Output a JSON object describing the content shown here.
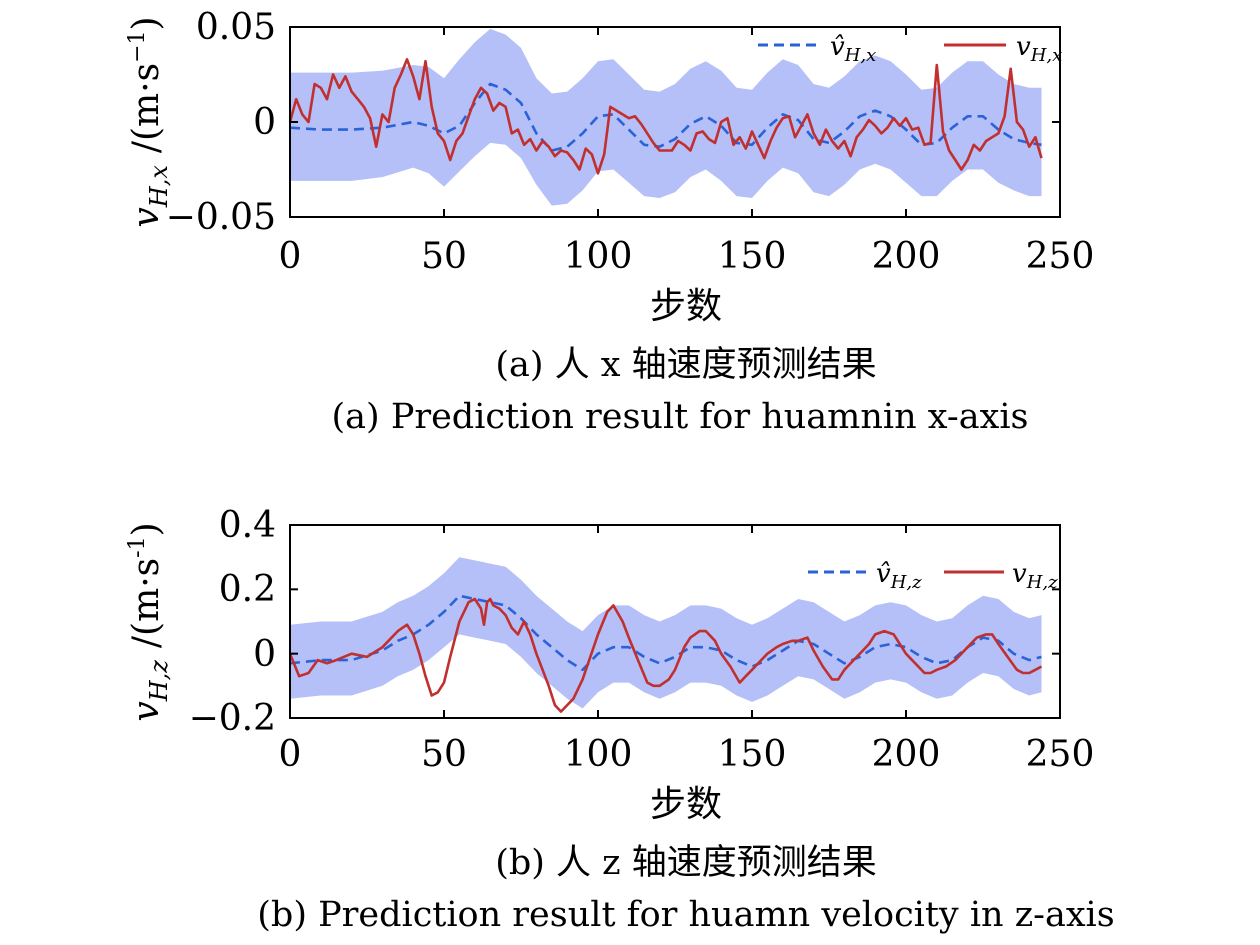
{
  "chart_data": [
    {
      "type": "line",
      "xlabel": "步数",
      "ylabel": "v",
      "ylabel_sub": "H,x",
      "ylabel_unit": "/(m·s",
      "ylabel_unit_exp": "−1",
      "ylabel_unit_close": ")",
      "caption_cn": "(a) 人 x 轴速度预测结果",
      "caption_en": "(a) Prediction result for huamnin x-axis",
      "xlim": [
        0,
        250
      ],
      "ylim": [
        -0.05,
        0.05
      ],
      "xticks": [
        0,
        50,
        100,
        150,
        200,
        250
      ],
      "xtick_labels": [
        "0",
        "50",
        "100",
        "150",
        "200",
        "250"
      ],
      "yticks": [
        -0.05,
        0,
        0.05
      ],
      "ytick_labels": [
        "−0.05",
        "0",
        "0.05"
      ],
      "legend_position": "top-right",
      "band_color": "#b4c0f7",
      "series": [
        {
          "name": "v̂",
          "name_sub": "H,x",
          "style": "dashed",
          "color": "#2a62d8",
          "x": [
            0,
            10,
            20,
            30,
            40,
            45,
            50,
            55,
            60,
            65,
            70,
            75,
            80,
            85,
            90,
            95,
            100,
            105,
            110,
            115,
            120,
            125,
            130,
            135,
            140,
            145,
            150,
            155,
            160,
            165,
            170,
            175,
            180,
            185,
            190,
            195,
            200,
            205,
            210,
            215,
            220,
            225,
            230,
            235,
            240,
            244
          ],
          "y": [
            -0.003,
            -0.004,
            -0.004,
            -0.003,
            0,
            -0.002,
            -0.006,
            -0.002,
            0.01,
            0.02,
            0.017,
            0.01,
            -0.006,
            -0.015,
            -0.013,
            -0.006,
            0.003,
            0.004,
            -0.004,
            -0.012,
            -0.013,
            -0.009,
            -0.001,
            0.003,
            -0.002,
            -0.011,
            -0.012,
            -0.003,
            0.004,
            0.001,
            -0.009,
            -0.011,
            -0.005,
            0.003,
            0.006,
            0.003,
            -0.004,
            -0.012,
            -0.011,
            -0.003,
            0.003,
            0.003,
            -0.004,
            -0.009,
            -0.011,
            -0.012
          ]
        },
        {
          "name": "v",
          "name_sub": "H,x",
          "style": "solid",
          "color": "#c22f2f",
          "x": [
            0,
            2,
            4,
            6,
            8,
            10,
            12,
            14,
            16,
            18,
            20,
            22,
            24,
            26,
            28,
            30,
            32,
            34,
            36,
            38,
            40,
            42,
            44,
            46,
            48,
            50,
            52,
            54,
            56,
            58,
            60,
            62,
            64,
            66,
            68,
            70,
            72,
            74,
            76,
            78,
            80,
            82,
            84,
            86,
            88,
            90,
            92,
            94,
            96,
            98,
            100,
            102,
            104,
            106,
            108,
            110,
            112,
            114,
            116,
            118,
            120,
            122,
            124,
            126,
            128,
            130,
            132,
            134,
            136,
            138,
            140,
            142,
            144,
            146,
            148,
            150,
            152,
            154,
            156,
            158,
            160,
            162,
            164,
            166,
            168,
            170,
            172,
            174,
            176,
            178,
            180,
            182,
            184,
            186,
            188,
            190,
            192,
            194,
            196,
            198,
            200,
            202,
            204,
            206,
            208,
            210,
            212,
            214,
            216,
            218,
            220,
            222,
            224,
            226,
            228,
            230,
            232,
            234,
            236,
            238,
            240,
            242,
            244
          ],
          "y": [
            0,
            0.012,
            0.004,
            0,
            0.02,
            0.018,
            0.012,
            0.025,
            0.018,
            0.024,
            0.016,
            0.012,
            0.008,
            0.002,
            -0.013,
            0.004,
            0,
            0.018,
            0.025,
            0.033,
            0.024,
            0.012,
            0.032,
            0.008,
            -0.006,
            -0.01,
            -0.02,
            -0.01,
            -0.006,
            0.003,
            0.012,
            0.018,
            0.015,
            0.006,
            0.01,
            0.008,
            -0.006,
            -0.004,
            -0.012,
            -0.009,
            -0.015,
            -0.01,
            -0.013,
            -0.018,
            -0.015,
            -0.016,
            -0.02,
            -0.025,
            -0.014,
            -0.017,
            -0.027,
            -0.017,
            0.008,
            0.006,
            0.004,
            0.002,
            0.003,
            -0.001,
            -0.006,
            -0.011,
            -0.015,
            -0.015,
            -0.015,
            -0.01,
            -0.012,
            -0.015,
            -0.006,
            -0.005,
            -0.009,
            -0.011,
            0,
            0.002,
            -0.012,
            -0.008,
            -0.014,
            -0.005,
            -0.012,
            -0.019,
            -0.01,
            -0.003,
            0.002,
            0.003,
            -0.008,
            -0.002,
            0.004,
            -0.006,
            -0.012,
            -0.004,
            -0.01,
            -0.014,
            -0.01,
            -0.018,
            -0.008,
            -0.004,
            0.001,
            -0.002,
            -0.006,
            -0.003,
            0.002,
            -0.002,
            0.002,
            -0.004,
            -0.003,
            -0.012,
            -0.011,
            0.03,
            -0.005,
            -0.015,
            -0.02,
            -0.025,
            -0.02,
            -0.012,
            -0.015,
            -0.01,
            -0.008,
            -0.006,
            0.003,
            0.028,
            0,
            -0.004,
            -0.013,
            -0.008,
            -0.019
          ]
        }
      ],
      "band": {
        "x": [
          0,
          10,
          20,
          30,
          40,
          45,
          50,
          55,
          60,
          65,
          70,
          75,
          80,
          85,
          90,
          95,
          100,
          105,
          110,
          115,
          120,
          125,
          130,
          135,
          140,
          145,
          150,
          155,
          160,
          165,
          170,
          175,
          180,
          185,
          190,
          195,
          200,
          205,
          210,
          215,
          220,
          225,
          230,
          235,
          240,
          244
        ],
        "lower": [
          -0.031,
          -0.031,
          -0.031,
          -0.029,
          -0.024,
          -0.027,
          -0.034,
          -0.026,
          -0.018,
          -0.011,
          -0.012,
          -0.019,
          -0.033,
          -0.044,
          -0.043,
          -0.036,
          -0.026,
          -0.025,
          -0.032,
          -0.039,
          -0.04,
          -0.037,
          -0.029,
          -0.025,
          -0.031,
          -0.039,
          -0.04,
          -0.031,
          -0.024,
          -0.027,
          -0.037,
          -0.039,
          -0.033,
          -0.025,
          -0.022,
          -0.025,
          -0.032,
          -0.039,
          -0.039,
          -0.031,
          -0.025,
          -0.025,
          -0.032,
          -0.036,
          -0.039,
          -0.039
        ],
        "upper": [
          0.026,
          0.026,
          0.026,
          0.027,
          0.03,
          0.029,
          0.023,
          0.033,
          0.042,
          0.049,
          0.046,
          0.039,
          0.023,
          0.015,
          0.016,
          0.023,
          0.032,
          0.033,
          0.025,
          0.017,
          0.016,
          0.02,
          0.028,
          0.032,
          0.027,
          0.018,
          0.017,
          0.026,
          0.033,
          0.03,
          0.02,
          0.018,
          0.024,
          0.032,
          0.035,
          0.032,
          0.025,
          0.017,
          0.018,
          0.026,
          0.032,
          0.032,
          0.025,
          0.02,
          0.018,
          0.018
        ]
      }
    },
    {
      "type": "line",
      "xlabel": "步数",
      "ylabel": "v",
      "ylabel_sub": "H,z",
      "ylabel_unit": "/(m·s",
      "ylabel_unit_exp": "-1",
      "ylabel_unit_close": ")",
      "caption_cn": "(b) 人 z 轴速度预测结果",
      "caption_en": "(b) Prediction result for huamn velocity in z-axis",
      "xlim": [
        0,
        250
      ],
      "ylim": [
        -0.2,
        0.4
      ],
      "xticks": [
        0,
        50,
        100,
        150,
        200,
        250
      ],
      "xtick_labels": [
        "0",
        "50",
        "100",
        "150",
        "200",
        "250"
      ],
      "yticks": [
        -0.2,
        0,
        0.2,
        0.4
      ],
      "ytick_labels": [
        "−0.2",
        "0",
        "0.2",
        "0.4"
      ],
      "legend_position": "top-right",
      "band_color": "#b4c0f7",
      "series": [
        {
          "name": "v̂",
          "name_sub": "H,z",
          "style": "dashed",
          "color": "#2a62d8",
          "x": [
            0,
            10,
            20,
            30,
            35,
            40,
            45,
            50,
            55,
            60,
            65,
            70,
            75,
            80,
            85,
            90,
            95,
            100,
            105,
            110,
            115,
            120,
            125,
            130,
            135,
            140,
            145,
            150,
            155,
            160,
            165,
            170,
            175,
            180,
            185,
            190,
            195,
            200,
            205,
            210,
            215,
            220,
            225,
            230,
            235,
            240,
            244
          ],
          "y": [
            -0.03,
            -0.02,
            -0.02,
            0.01,
            0.04,
            0.06,
            0.09,
            0.13,
            0.18,
            0.17,
            0.16,
            0.15,
            0.11,
            0.06,
            0.02,
            -0.02,
            -0.05,
            0,
            0.02,
            0.02,
            -0.01,
            -0.03,
            -0.01,
            0.02,
            0.02,
            0.01,
            -0.02,
            -0.04,
            -0.02,
            0.01,
            0.04,
            0.03,
            0,
            -0.03,
            -0.01,
            0.02,
            0.03,
            0.02,
            -0.01,
            -0.03,
            -0.02,
            0.02,
            0.05,
            0.04,
            0,
            -0.02,
            -0.01
          ]
        },
        {
          "name": "v",
          "name_sub": "H,z",
          "style": "solid",
          "color": "#c22f2f",
          "x": [
            0,
            3,
            6,
            9,
            12,
            15,
            20,
            25,
            30,
            35,
            38,
            40,
            42,
            44,
            46,
            48,
            50,
            52,
            55,
            58,
            60,
            62,
            63,
            64,
            65,
            66,
            68,
            70,
            72,
            74,
            76,
            78,
            80,
            82,
            84,
            86,
            88,
            90,
            92,
            95,
            100,
            103,
            105,
            108,
            110,
            113,
            116,
            118,
            120,
            123,
            125,
            128,
            130,
            133,
            135,
            138,
            140,
            143,
            146,
            148,
            150,
            153,
            155,
            158,
            160,
            163,
            165,
            168,
            170,
            173,
            176,
            178,
            180,
            183,
            186,
            188,
            190,
            193,
            196,
            198,
            200,
            203,
            206,
            208,
            210,
            213,
            216,
            218,
            220,
            223,
            226,
            228,
            230,
            233,
            236,
            238,
            240,
            242,
            244
          ],
          "y": [
            0,
            -0.07,
            -0.06,
            -0.02,
            -0.03,
            -0.02,
            0,
            -0.01,
            0.02,
            0.07,
            0.09,
            0.06,
            0,
            -0.07,
            -0.13,
            -0.12,
            -0.09,
            -0.01,
            0.1,
            0.16,
            0.17,
            0.14,
            0.09,
            0.16,
            0.17,
            0.15,
            0.14,
            0.12,
            0.08,
            0.06,
            0.1,
            0.06,
            0,
            -0.05,
            -0.1,
            -0.16,
            -0.18,
            -0.16,
            -0.14,
            -0.08,
            0.06,
            0.13,
            0.15,
            0.1,
            0.05,
            -0.02,
            -0.09,
            -0.1,
            -0.1,
            -0.08,
            -0.05,
            0.02,
            0.05,
            0.07,
            0.07,
            0.04,
            0,
            -0.04,
            -0.09,
            -0.07,
            -0.05,
            -0.02,
            0,
            0.02,
            0.03,
            0.04,
            0.04,
            0.05,
            0.01,
            -0.04,
            -0.08,
            -0.08,
            -0.05,
            -0.02,
            0.01,
            0.03,
            0.06,
            0.07,
            0.06,
            0.03,
            0,
            -0.03,
            -0.06,
            -0.06,
            -0.05,
            -0.04,
            -0.02,
            0,
            0.02,
            0.05,
            0.06,
            0.06,
            0.03,
            -0.01,
            -0.05,
            -0.06,
            -0.06,
            -0.05,
            -0.04
          ]
        }
      ],
      "band": {
        "x": [
          0,
          10,
          20,
          30,
          35,
          40,
          45,
          50,
          55,
          60,
          65,
          70,
          75,
          80,
          85,
          90,
          95,
          100,
          105,
          110,
          115,
          120,
          125,
          130,
          135,
          140,
          145,
          150,
          155,
          160,
          165,
          170,
          175,
          180,
          185,
          190,
          195,
          200,
          205,
          210,
          215,
          220,
          225,
          230,
          235,
          240,
          244
        ],
        "lower": [
          -0.14,
          -0.13,
          -0.13,
          -0.1,
          -0.07,
          -0.05,
          -0.02,
          0.02,
          0.06,
          0.05,
          0.04,
          0.03,
          -0.01,
          -0.06,
          -0.1,
          -0.14,
          -0.17,
          -0.12,
          -0.09,
          -0.09,
          -0.12,
          -0.14,
          -0.12,
          -0.09,
          -0.09,
          -0.1,
          -0.13,
          -0.15,
          -0.13,
          -0.1,
          -0.07,
          -0.08,
          -0.11,
          -0.14,
          -0.12,
          -0.09,
          -0.08,
          -0.09,
          -0.12,
          -0.14,
          -0.13,
          -0.09,
          -0.06,
          -0.07,
          -0.11,
          -0.13,
          -0.12
        ],
        "upper": [
          0.09,
          0.1,
          0.1,
          0.13,
          0.16,
          0.18,
          0.21,
          0.25,
          0.3,
          0.29,
          0.28,
          0.27,
          0.23,
          0.18,
          0.14,
          0.1,
          0.07,
          0.12,
          0.15,
          0.15,
          0.12,
          0.1,
          0.12,
          0.15,
          0.15,
          0.14,
          0.11,
          0.09,
          0.11,
          0.14,
          0.17,
          0.16,
          0.13,
          0.1,
          0.12,
          0.15,
          0.16,
          0.15,
          0.12,
          0.1,
          0.11,
          0.15,
          0.18,
          0.17,
          0.13,
          0.11,
          0.12
        ]
      }
    }
  ]
}
